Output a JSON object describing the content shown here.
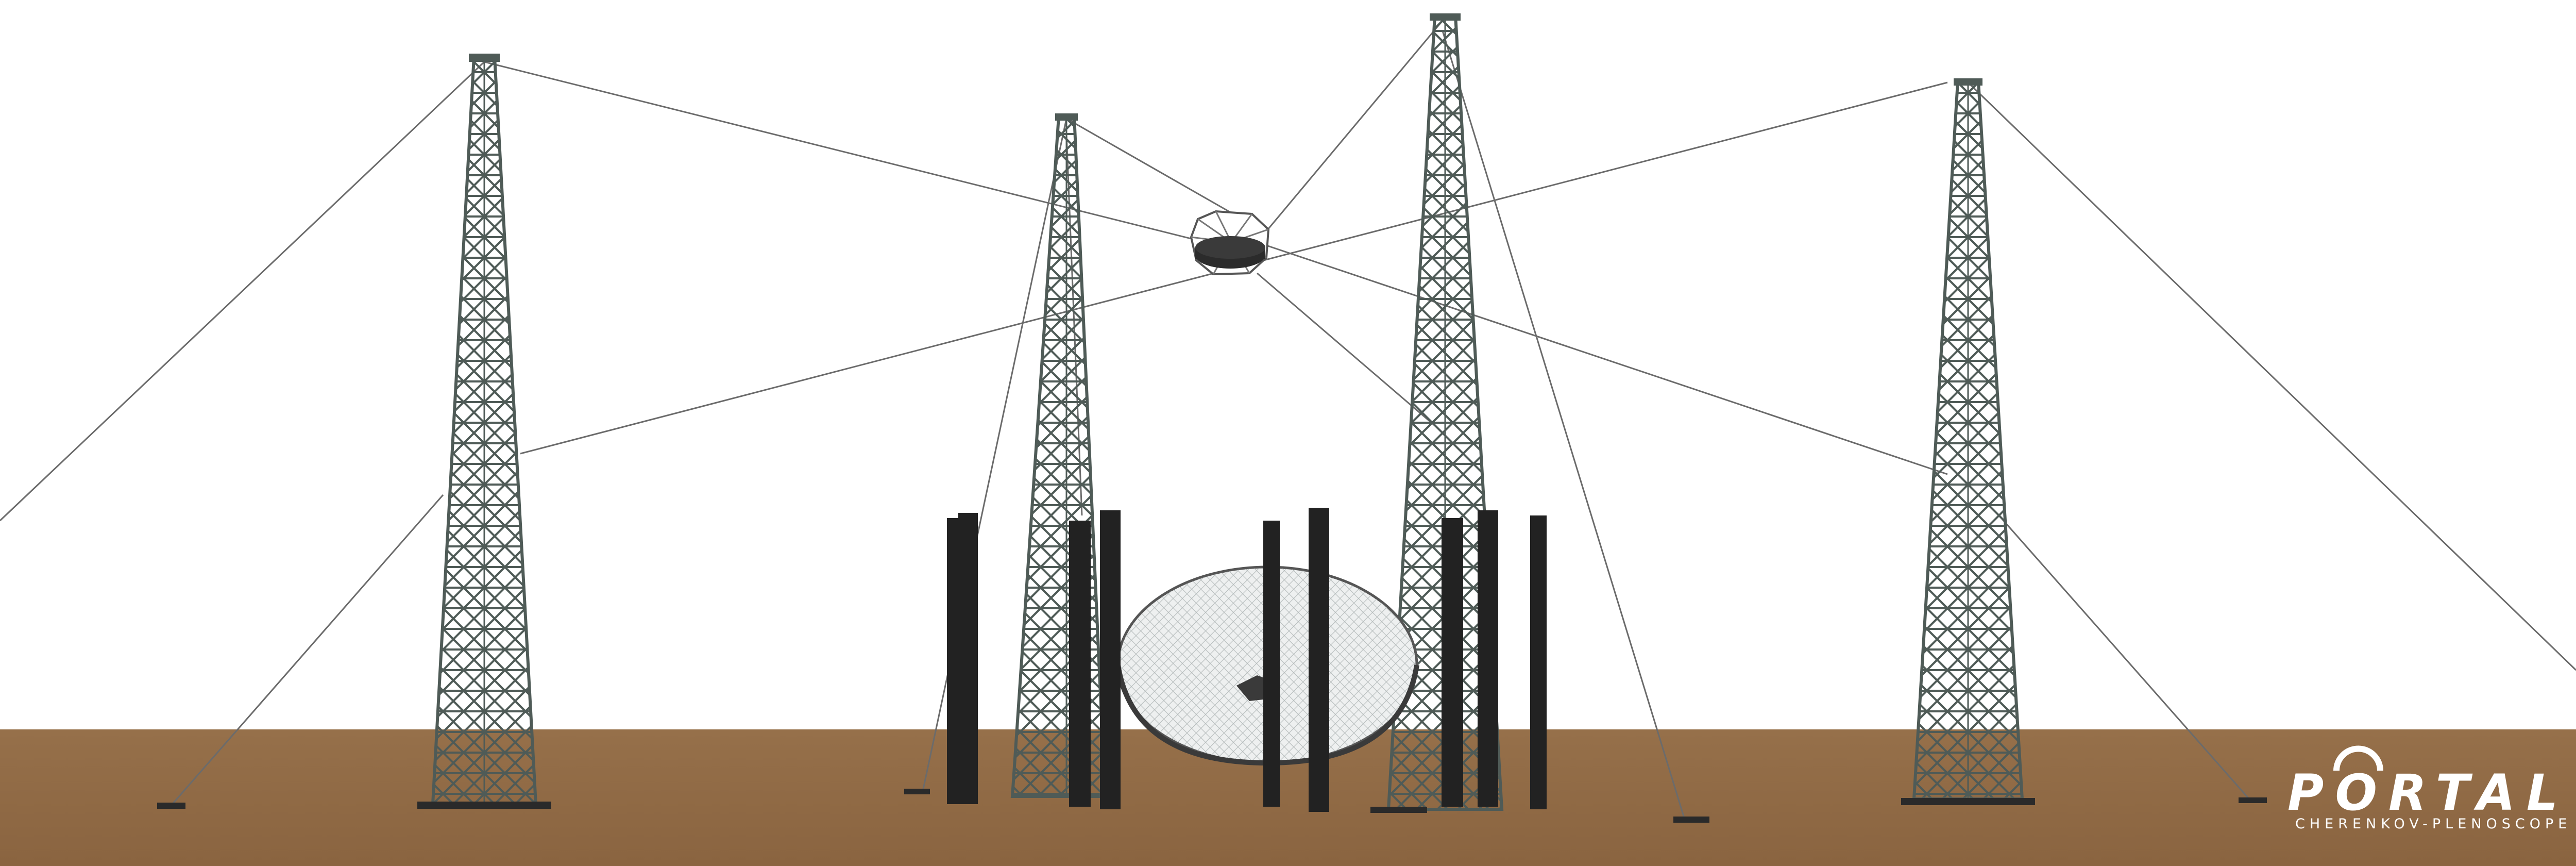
{
  "scene": {
    "description_label": "Portal Cherenkov-plenoscope rendering",
    "sky_color": "#ffffff",
    "ground_color": "#8e6a44",
    "tower_color": "#4f5b57",
    "column_color": "#222222",
    "cable_color": "#6b6b6b",
    "mirror_color": "#e9ecec",
    "camera_color": "#2b2b2b"
  },
  "logo": {
    "word": "PORTAL",
    "subtitle": "CHERENKOV-PLENOSCOPE"
  }
}
